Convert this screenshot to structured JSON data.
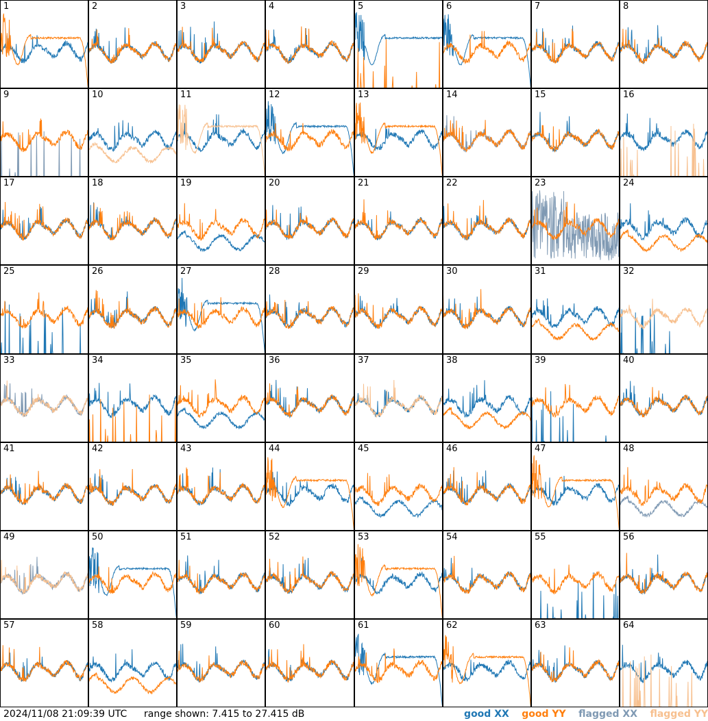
{
  "footer": {
    "timestamp": "2024/11/08 21:09:39 UTC",
    "range": "range shown: 7.415 to 27.415 dB"
  },
  "legend": {
    "items": [
      {
        "label": "good XX",
        "color": "#1f77b4"
      },
      {
        "label": "good YY",
        "color": "#ff7f0e"
      },
      {
        "label": "flagged XX",
        "color": "#7f99b3"
      },
      {
        "label": "flagged YY",
        "color": "#f7c08f"
      }
    ]
  },
  "chart_data": {
    "type": "line",
    "grid": {
      "rows": 8,
      "cols": 8
    },
    "ylim": [
      7.415,
      27.415
    ],
    "yunit": "dB",
    "panels": [
      {
        "label": "1",
        "xx": "normal",
        "yy": "dip_drop"
      },
      {
        "label": "2",
        "xx": "normal",
        "yy": "normal"
      },
      {
        "label": "3",
        "xx": "normal",
        "yy": "normal"
      },
      {
        "label": "4",
        "xx": "normal",
        "yy": "normal"
      },
      {
        "label": "5",
        "xx": "dip",
        "yy": "spiky_low"
      },
      {
        "label": "6",
        "xx": "dip_drop",
        "yy": "normal"
      },
      {
        "label": "7",
        "xx": "normal",
        "yy": "normal"
      },
      {
        "label": "8",
        "xx": "normal",
        "yy": "normal"
      },
      {
        "label": "9",
        "xx": "spiky_low",
        "yy": "normal",
        "xx_flag": true
      },
      {
        "label": "10",
        "xx": "normal",
        "yy": "low",
        "yy_flag": true
      },
      {
        "label": "11",
        "xx": "normal",
        "yy": "dip_drop",
        "yy_flag": true
      },
      {
        "label": "12",
        "xx": "dip_drop",
        "yy": "normal"
      },
      {
        "label": "13",
        "xx": "normal",
        "yy": "dip_drop"
      },
      {
        "label": "14",
        "xx": "normal",
        "yy": "normal",
        "xx_flag": true
      },
      {
        "label": "15",
        "xx": "normal",
        "yy": "normal"
      },
      {
        "label": "16",
        "xx": "normal",
        "yy": "spiky_low",
        "yy_flag": true
      },
      {
        "label": "17",
        "xx": "normal",
        "yy": "normal"
      },
      {
        "label": "18",
        "xx": "normal",
        "yy": "normal"
      },
      {
        "label": "19",
        "xx": "low",
        "yy": "normal"
      },
      {
        "label": "20",
        "xx": "normal",
        "yy": "normal"
      },
      {
        "label": "21",
        "xx": "normal",
        "yy": "normal"
      },
      {
        "label": "22",
        "xx": "normal",
        "yy": "normal"
      },
      {
        "label": "23",
        "xx": "noisy",
        "yy": "normal",
        "xx_flag": true
      },
      {
        "label": "24",
        "xx": "normal",
        "yy": "low"
      },
      {
        "label": "25",
        "xx": "spiky_low",
        "yy": "normal"
      },
      {
        "label": "26",
        "xx": "normal",
        "yy": "normal"
      },
      {
        "label": "27",
        "xx": "dip_drop",
        "yy": "normal"
      },
      {
        "label": "28",
        "xx": "normal",
        "yy": "normal"
      },
      {
        "label": "29",
        "xx": "normal",
        "yy": "normal"
      },
      {
        "label": "30",
        "xx": "normal",
        "yy": "normal"
      },
      {
        "label": "31",
        "xx": "normal",
        "yy": "low"
      },
      {
        "label": "32",
        "xx": "spiky_low",
        "yy": "normal",
        "yy_flag": true
      },
      {
        "label": "33",
        "xx": "normal",
        "yy": "normal",
        "xx_flag": true,
        "yy_flag": true
      },
      {
        "label": "34",
        "xx": "normal",
        "yy": "spiky_low"
      },
      {
        "label": "35",
        "xx": "low",
        "yy": "normal"
      },
      {
        "label": "36",
        "xx": "normal",
        "yy": "normal"
      },
      {
        "label": "37",
        "xx": "normal",
        "yy": "normal",
        "yy_flag": true
      },
      {
        "label": "38",
        "xx": "normal",
        "yy": "low"
      },
      {
        "label": "39",
        "xx": "spiky_low",
        "yy": "normal"
      },
      {
        "label": "40",
        "xx": "normal",
        "yy": "normal"
      },
      {
        "label": "41",
        "xx": "normal",
        "yy": "normal"
      },
      {
        "label": "42",
        "xx": "normal",
        "yy": "normal"
      },
      {
        "label": "43",
        "xx": "normal",
        "yy": "normal"
      },
      {
        "label": "44",
        "xx": "normal",
        "yy": "dip_drop"
      },
      {
        "label": "45",
        "xx": "low",
        "yy": "normal"
      },
      {
        "label": "46",
        "xx": "normal",
        "yy": "normal"
      },
      {
        "label": "47",
        "xx": "normal",
        "yy": "dip_drop"
      },
      {
        "label": "48",
        "xx": "low",
        "yy": "normal",
        "xx_flag": true
      },
      {
        "label": "49",
        "xx": "normal",
        "yy": "normal",
        "xx_flag": true,
        "yy_flag": true
      },
      {
        "label": "50",
        "xx": "dip_drop",
        "yy": "normal"
      },
      {
        "label": "51",
        "xx": "normal",
        "yy": "normal"
      },
      {
        "label": "52",
        "xx": "normal",
        "yy": "normal"
      },
      {
        "label": "53",
        "xx": "normal",
        "yy": "dip_drop"
      },
      {
        "label": "54",
        "xx": "normal",
        "yy": "normal"
      },
      {
        "label": "55",
        "xx": "spiky_low",
        "yy": "normal"
      },
      {
        "label": "56",
        "xx": "normal",
        "yy": "normal"
      },
      {
        "label": "57",
        "xx": "normal",
        "yy": "normal"
      },
      {
        "label": "58",
        "xx": "normal",
        "yy": "low"
      },
      {
        "label": "59",
        "xx": "normal",
        "yy": "normal"
      },
      {
        "label": "60",
        "xx": "normal",
        "yy": "normal"
      },
      {
        "label": "61",
        "xx": "dip_drop",
        "yy": "normal"
      },
      {
        "label": "62",
        "xx": "normal",
        "yy": "dip_drop"
      },
      {
        "label": "63",
        "xx": "normal",
        "yy": "normal"
      },
      {
        "label": "64",
        "xx": "normal",
        "yy": "spiky_low",
        "yy_flag": true
      }
    ]
  }
}
